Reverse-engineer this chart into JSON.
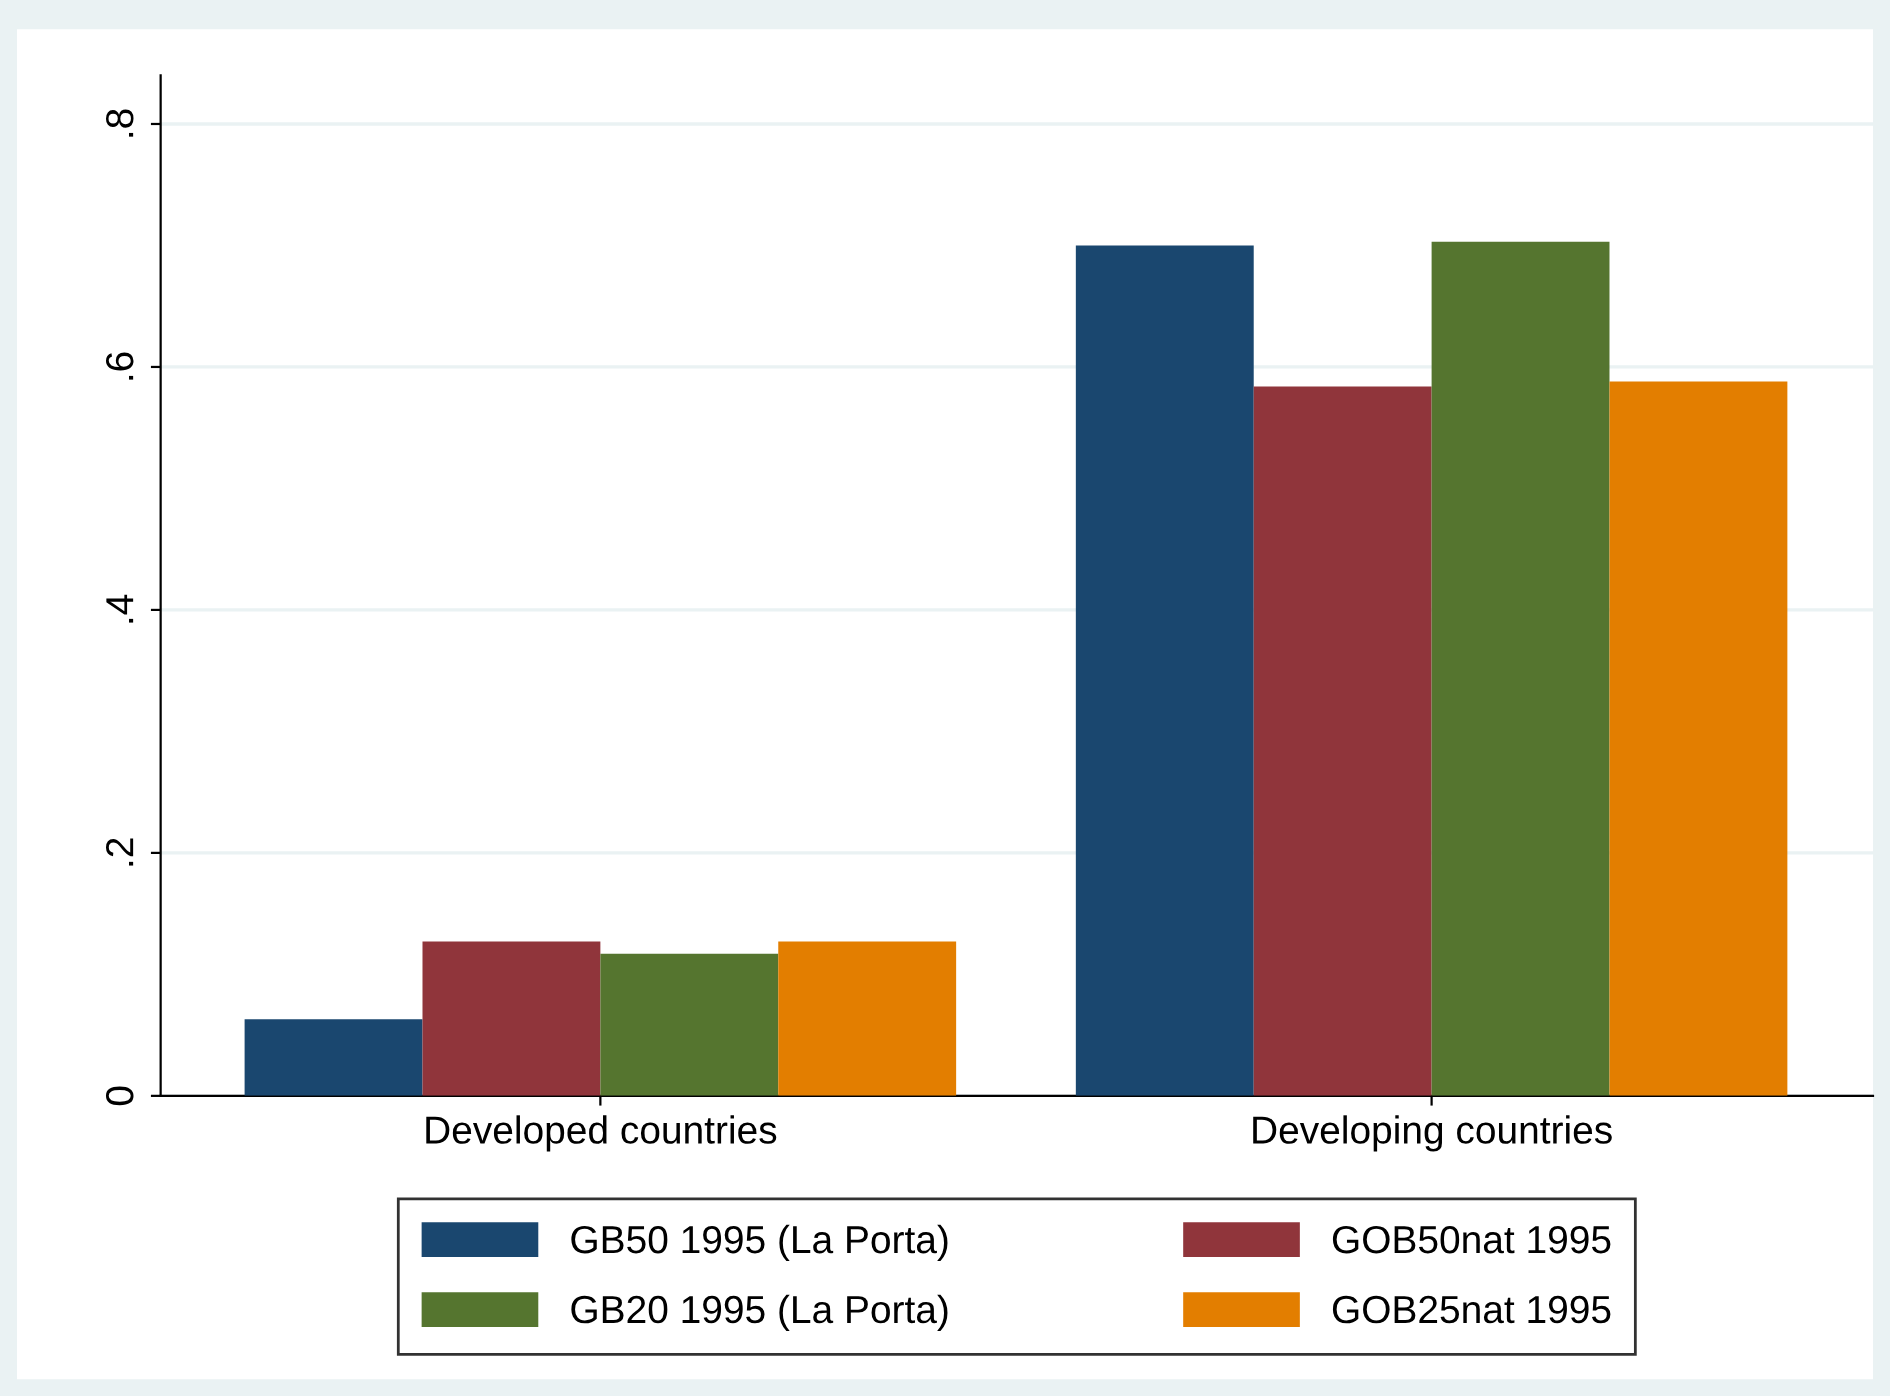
{
  "chart_data": {
    "type": "bar",
    "categories": [
      "Developed countries",
      "Developing countries"
    ],
    "series": [
      {
        "name": "GB50 1995 (La Porta)",
        "color": "#1a476f",
        "values": [
          0.063,
          0.7
        ]
      },
      {
        "name": "GOB50nat 1995",
        "color": "#90353b",
        "values": [
          0.127,
          0.584
        ]
      },
      {
        "name": "GB20 1995 (La Porta)",
        "color": "#55752f",
        "values": [
          0.117,
          0.703
        ]
      },
      {
        "name": "GOB25nat 1995",
        "color": "#e37e00",
        "values": [
          0.127,
          0.588
        ]
      }
    ],
    "ylim": [
      0,
      0.84
    ],
    "yticks": [
      0,
      {
        "value": 0.2,
        "label": ".2"
      },
      {
        "value": 0.4,
        "label": ".4"
      },
      {
        "value": 0.6,
        "label": ".6"
      },
      {
        "value": 0.8,
        "label": ".8"
      }
    ],
    "grid": "y",
    "legend": "bottom"
  }
}
